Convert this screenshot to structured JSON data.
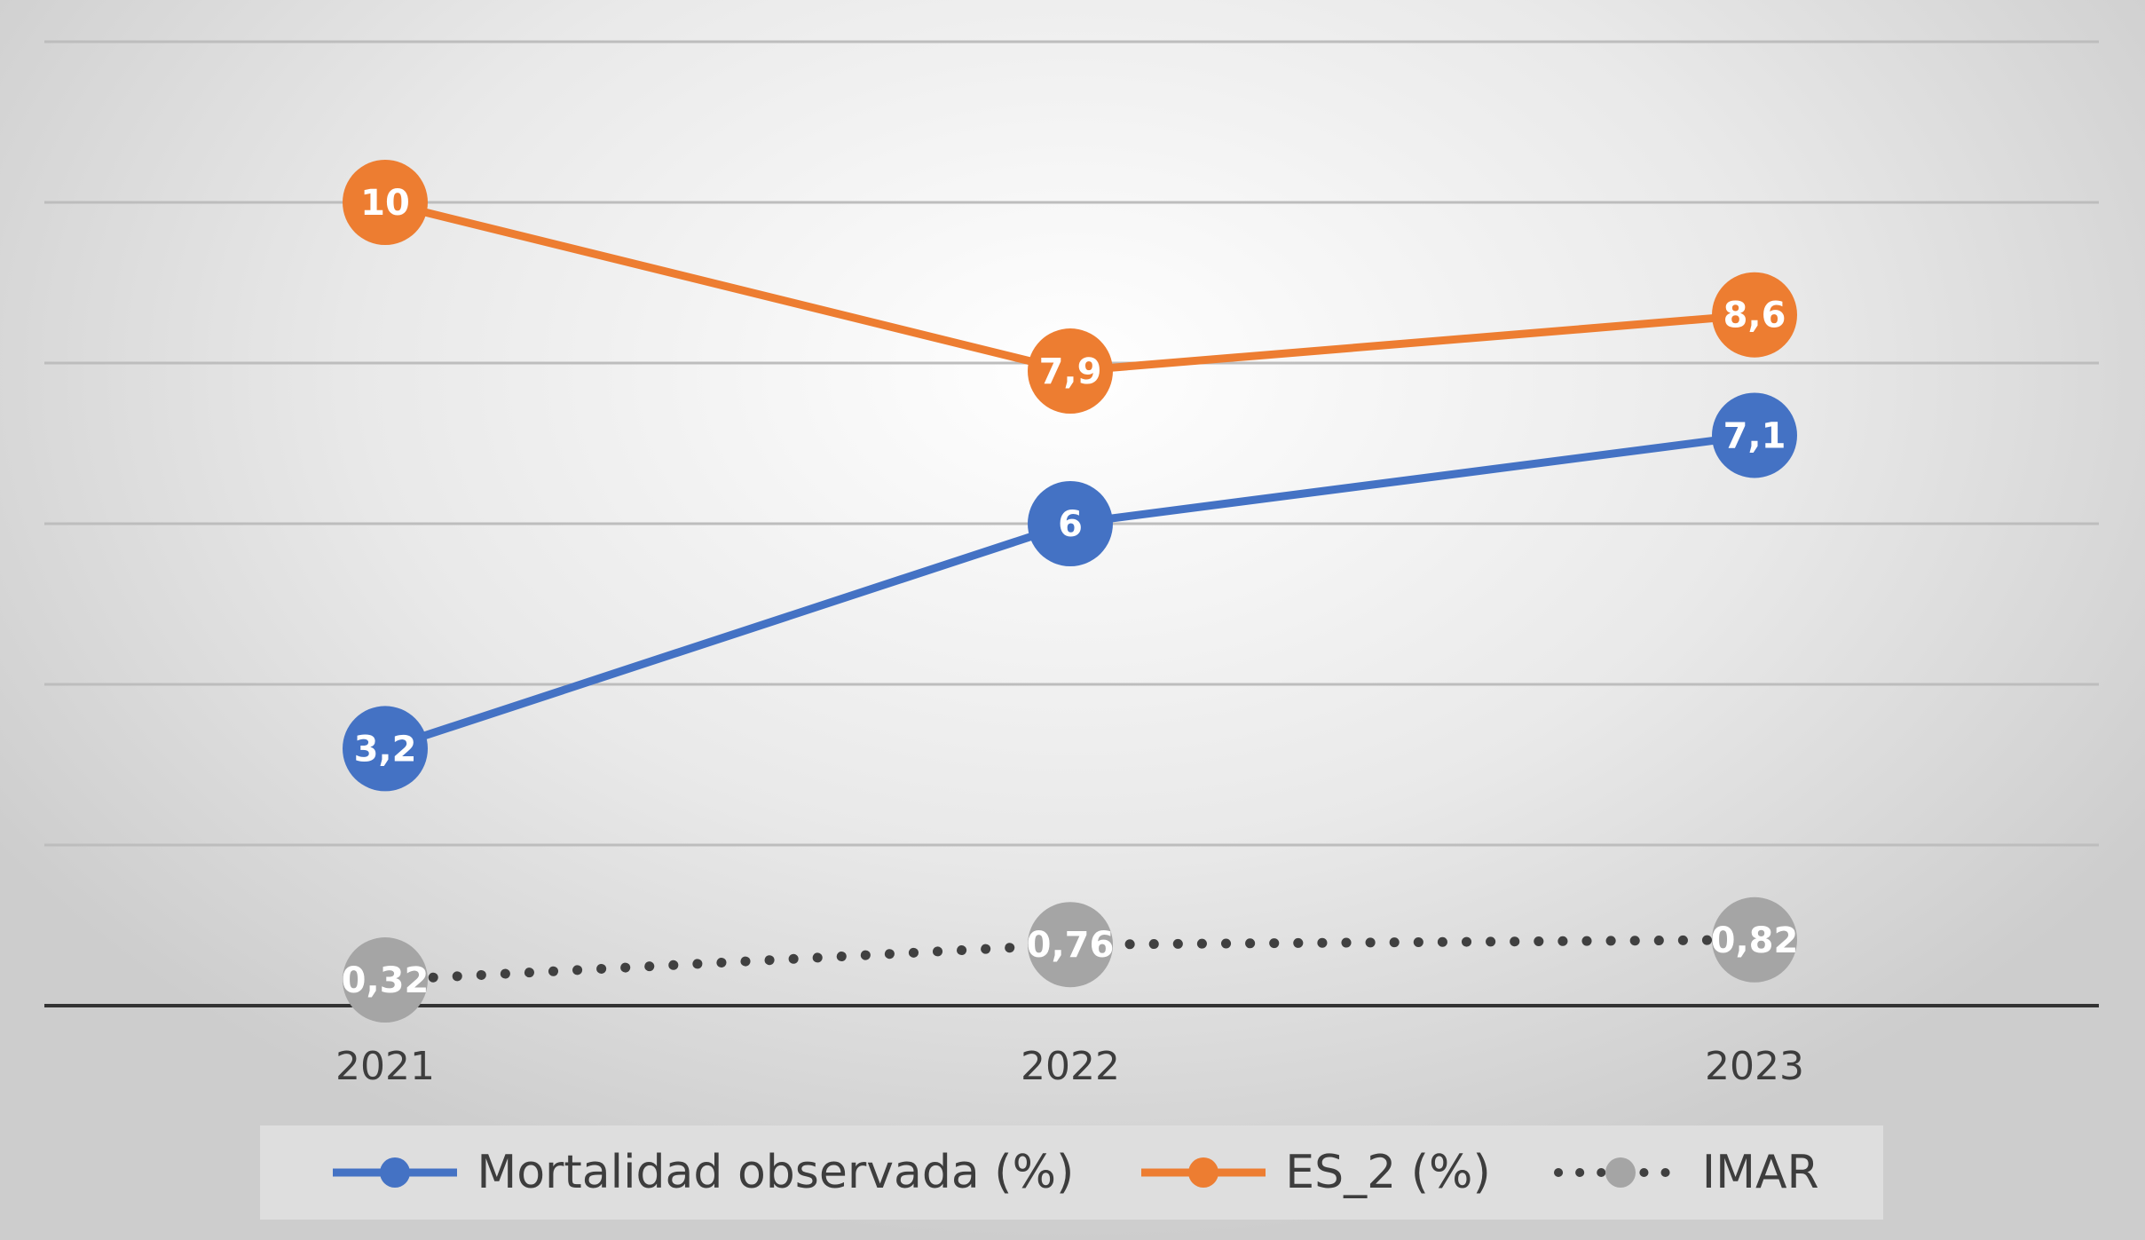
{
  "chart_data": {
    "type": "line",
    "categories": [
      "2021",
      "2022",
      "2023"
    ],
    "series": [
      {
        "name": "Mortalidad observada (%)",
        "values": [
          3.2,
          6,
          7.1
        ],
        "labels": [
          "3,2",
          "6",
          "7,1"
        ],
        "color": "#4472C4",
        "line_style": "solid"
      },
      {
        "name": "ES_2 (%)",
        "values": [
          10,
          7.9,
          8.6
        ],
        "labels": [
          "10",
          "7,9",
          "8,6"
        ],
        "color": "#ED7D31",
        "line_style": "solid"
      },
      {
        "name": "IMAR",
        "values": [
          0.32,
          0.76,
          0.82
        ],
        "labels": [
          "0,32",
          "0,76",
          "0,82"
        ],
        "color": "#A5A5A5",
        "line_color": "#404040",
        "line_style": "dotted"
      }
    ],
    "ylim": [
      0,
      12
    ],
    "grid": true,
    "legend": "bottom"
  }
}
